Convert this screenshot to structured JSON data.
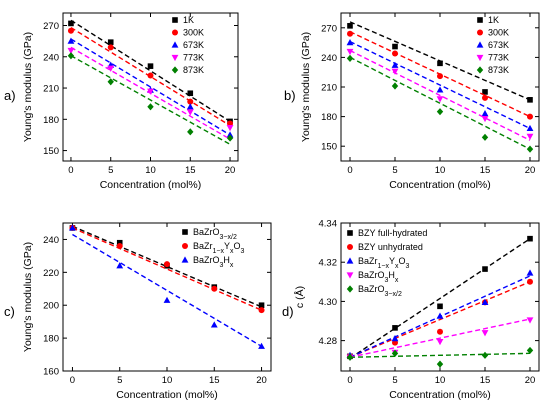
{
  "chart_data": [
    {
      "panel_label": "a)",
      "type": "scatter",
      "fit_lines": "dashed linear fit per series",
      "xlabel": "Concentration (mol%)",
      "ylabel": "Young's modulus (GPa)",
      "xlim": [
        -1,
        21
      ],
      "ylim": [
        140,
        282
      ],
      "xticks": [
        0,
        5,
        10,
        15,
        20
      ],
      "yticks": [
        150,
        180,
        210,
        240,
        270
      ],
      "legend_position": "top-right",
      "series": [
        {
          "name": "1K",
          "color": "#000000",
          "marker": "square",
          "x": [
            0,
            5,
            10,
            15,
            20
          ],
          "y": [
            272,
            254,
            231,
            205,
            178
          ],
          "fit": [
            275,
            178
          ]
        },
        {
          "name": "300K",
          "color": "#ff0000",
          "marker": "circle",
          "x": [
            0,
            5,
            10,
            15,
            20
          ],
          "y": [
            265,
            249,
            222,
            197,
            176
          ],
          "fit": [
            268,
            174
          ]
        },
        {
          "name": "673K",
          "color": "#0000ff",
          "marker": "triangle-up",
          "x": [
            0,
            5,
            10,
            15,
            20
          ],
          "y": [
            255,
            232,
            208,
            192,
            165
          ],
          "fit": [
            257,
            165
          ]
        },
        {
          "name": "773K",
          "color": "#ff00ff",
          "marker": "triangle-down",
          "x": [
            0,
            5,
            10,
            15,
            20
          ],
          "y": [
            246,
            229,
            207,
            187,
            172
          ],
          "fit": [
            249,
            161
          ]
        },
        {
          "name": "873K",
          "color": "#008000",
          "marker": "diamond",
          "x": [
            0,
            5,
            10,
            15,
            20
          ],
          "y": [
            241,
            216,
            192,
            168,
            162
          ],
          "fit": [
            241,
            156
          ]
        }
      ]
    },
    {
      "panel_label": "b)",
      "type": "scatter",
      "fit_lines": "dashed linear fit per series",
      "xlabel": "Concentration (mol%)",
      "ylabel": "Young's modulus (GPa)",
      "xlim": [
        -1,
        21
      ],
      "ylim": [
        135,
        285
      ],
      "xticks": [
        0,
        5,
        10,
        15,
        20
      ],
      "yticks": [
        150,
        180,
        210,
        240,
        270
      ],
      "legend_position": "top-right",
      "series": [
        {
          "name": "1K",
          "color": "#000000",
          "marker": "square",
          "x": [
            0,
            5,
            10,
            15,
            20
          ],
          "y": [
            272,
            251,
            234,
            205,
            197
          ],
          "fit": [
            276,
            197
          ]
        },
        {
          "name": "300K",
          "color": "#ff0000",
          "marker": "circle",
          "x": [
            0,
            5,
            10,
            15,
            20
          ],
          "y": [
            264,
            244,
            221,
            199,
            180
          ],
          "fit": [
            266,
            180
          ]
        },
        {
          "name": "673K",
          "color": "#0000ff",
          "marker": "triangle-up",
          "x": [
            0,
            5,
            10,
            15,
            20
          ],
          "y": [
            255,
            232,
            207,
            183,
            168
          ],
          "fit": [
            256,
            168
          ]
        },
        {
          "name": "773K",
          "color": "#ff00ff",
          "marker": "triangle-down",
          "x": [
            0,
            5,
            10,
            15,
            20
          ],
          "y": [
            246,
            226,
            198,
            178,
            160
          ],
          "fit": [
            247,
            156
          ]
        },
        {
          "name": "873K",
          "color": "#008000",
          "marker": "diamond",
          "x": [
            0,
            5,
            10,
            15,
            20
          ],
          "y": [
            239,
            211,
            185,
            159,
            147
          ],
          "fit": [
            240,
            147
          ]
        }
      ]
    },
    {
      "panel_label": "c)",
      "type": "scatter",
      "fit_lines": "dashed linear fit per series",
      "xlabel": "Concentration (mol%)",
      "ylabel": "Young's modulus (GPa)",
      "xlim": [
        -1,
        21
      ],
      "ylim": [
        160,
        250
      ],
      "xticks": [
        0,
        5,
        10,
        15,
        20
      ],
      "yticks": [
        160,
        180,
        200,
        220,
        240
      ],
      "legend_position": "top-right",
      "series": [
        {
          "name": "BaZrO3-x/2",
          "legend_parts": [
            [
              "BaZrO",
              ""
            ],
            [
              "3−x/2",
              "sub"
            ]
          ],
          "color": "#000000",
          "marker": "square",
          "x": [
            0,
            5,
            10,
            15,
            20
          ],
          "y": [
            247,
            238,
            224,
            211,
            200
          ],
          "fit": [
            248,
            199
          ]
        },
        {
          "name": "BaZr1-xYxO3",
          "legend_parts": [
            [
              "BaZr",
              ""
            ],
            [
              "1−x",
              "sub"
            ],
            [
              "Y",
              ""
            ],
            [
              "x",
              "sub"
            ],
            [
              "O",
              ""
            ],
            [
              "3",
              "sub"
            ]
          ],
          "color": "#ff0000",
          "marker": "circle",
          "x": [
            0,
            5,
            10,
            15,
            20
          ],
          "y": [
            247,
            236,
            225,
            210,
            197
          ],
          "fit": [
            247,
            197
          ]
        },
        {
          "name": "BaZrO3Hx",
          "legend_parts": [
            [
              "BaZrO",
              ""
            ],
            [
              "3",
              "sub"
            ],
            [
              "H",
              ""
            ],
            [
              "x",
              "sub"
            ]
          ],
          "color": "#0000ff",
          "marker": "triangle-up",
          "x": [
            0,
            5,
            10,
            15,
            20
          ],
          "y": [
            247,
            224,
            203,
            188,
            175
          ],
          "fit": [
            243,
            175
          ]
        }
      ]
    },
    {
      "panel_label": "d)",
      "type": "scatter",
      "fit_lines": "dashed linear fit per series",
      "xlabel": "Concentration (mol%)",
      "ylabel": "c (Å)",
      "xlim": [
        -1,
        21
      ],
      "ylim": [
        4.2645,
        4.34
      ],
      "xticks": [
        0,
        5,
        10,
        15,
        20
      ],
      "yticks": [
        4.28,
        4.3,
        4.32,
        4.34
      ],
      "ytick_labels": [
        "4.28",
        "4.30",
        "4.32",
        "4.34"
      ],
      "legend_position": "top-left",
      "series": [
        {
          "name": "BZY full-hydrated",
          "legend_parts": [
            [
              "BZY full-hydrated",
              ""
            ]
          ],
          "color": "#000000",
          "marker": "square",
          "x": [
            0,
            5,
            10,
            15,
            20
          ],
          "y": [
            4.272,
            4.2865,
            4.2975,
            4.3165,
            4.332
          ],
          "fit": [
            4.271,
            4.332
          ]
        },
        {
          "name": "BZY unhydrated",
          "legend_parts": [
            [
              "BZY unhydrated",
              ""
            ]
          ],
          "color": "#ff0000",
          "marker": "circle",
          "x": [
            0,
            5,
            10,
            15,
            20
          ],
          "y": [
            4.272,
            4.279,
            4.2845,
            4.2995,
            4.31
          ],
          "fit": [
            4.2715,
            4.31
          ]
        },
        {
          "name": "BaZr1-xYxO3",
          "legend_parts": [
            [
              "BaZr",
              ""
            ],
            [
              "1−x",
              "sub"
            ],
            [
              "Y",
              ""
            ],
            [
              "x",
              "sub"
            ],
            [
              "O",
              ""
            ],
            [
              "3",
              "sub"
            ]
          ],
          "color": "#0000ff",
          "marker": "triangle-up",
          "x": [
            0,
            5,
            10,
            15,
            20
          ],
          "y": [
            4.2725,
            4.281,
            4.2925,
            4.2995,
            4.3145
          ],
          "fit": [
            4.2715,
            4.313
          ]
        },
        {
          "name": "BaZrO3Hx",
          "legend_parts": [
            [
              "BaZrO",
              ""
            ],
            [
              "3",
              "sub"
            ],
            [
              "H",
              ""
            ],
            [
              "x",
              "sub"
            ]
          ],
          "color": "#ff00ff",
          "marker": "triangle-down",
          "x": [
            0,
            5,
            10,
            15,
            20
          ],
          "y": [
            4.2715,
            4.274,
            4.2795,
            4.284,
            4.2905
          ],
          "fit": [
            4.2715,
            4.291
          ]
        },
        {
          "name": "BaZrO3-x/2",
          "legend_parts": [
            [
              "BaZrO",
              ""
            ],
            [
              "3−x/2",
              "sub"
            ]
          ],
          "color": "#008000",
          "marker": "diamond",
          "x": [
            0,
            5,
            10,
            15,
            20
          ],
          "y": [
            4.2715,
            4.2735,
            4.268,
            4.2725,
            4.275
          ],
          "fit": [
            4.2715,
            4.2735
          ]
        }
      ]
    }
  ]
}
